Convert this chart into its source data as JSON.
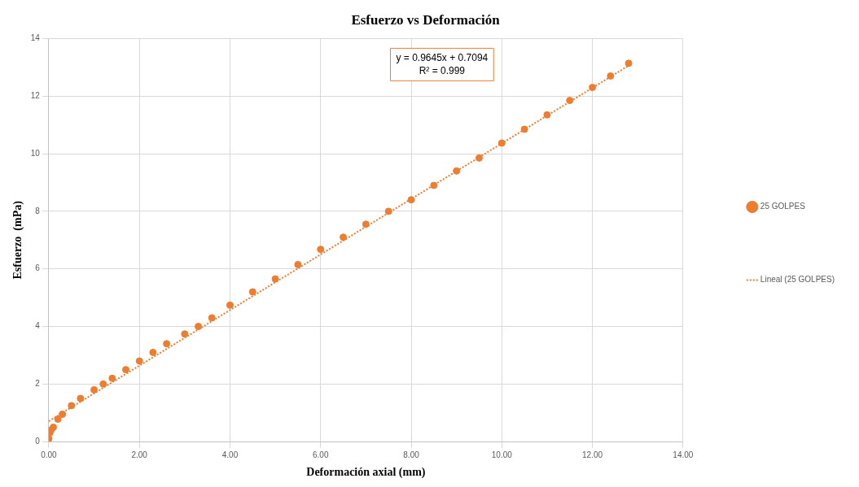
{
  "chart_data": {
    "type": "scatter",
    "title": "Esfuerzo vs Deformación",
    "xlabel": "Deformación axial (mm)",
    "ylabel": "Esfuerzo  (mPa)",
    "xlim": [
      0,
      14
    ],
    "xticks": [
      {
        "value": 0,
        "label": "0.00"
      },
      {
        "value": 2,
        "label": "2.00"
      },
      {
        "value": 4,
        "label": "4.00"
      },
      {
        "value": 6,
        "label": "6.00"
      },
      {
        "value": 8,
        "label": "8.00"
      },
      {
        "value": 10,
        "label": "10.00"
      },
      {
        "value": 12,
        "label": "12.00"
      },
      {
        "value": 14,
        "label": "14.00"
      }
    ],
    "ylim": [
      0,
      14
    ],
    "yticks": [
      0,
      2,
      4,
      6,
      8,
      10,
      12,
      14
    ],
    "grid": true,
    "legend": "right",
    "annotations": [
      "y = 0.9645x + 0.7094",
      "R² = 0.999"
    ],
    "series": [
      {
        "name": "25 GOLPES",
        "marker": "circle",
        "color": "#ed7d31",
        "x": [
          0,
          0.02,
          0.05,
          0.1,
          0.2,
          0.3,
          0.5,
          0.7,
          1.0,
          1.2,
          1.4,
          1.7,
          2.0,
          2.3,
          2.6,
          3.0,
          3.3,
          3.6,
          4.0,
          4.5,
          5.0,
          5.5,
          6.0,
          6.5,
          7.0,
          7.5,
          8.0,
          8.5,
          9.0,
          9.5,
          10.0,
          10.5,
          11.0,
          11.5,
          12.0,
          12.4,
          12.8
        ],
        "values": [
          0.1,
          0.3,
          0.4,
          0.5,
          0.78,
          0.95,
          1.25,
          1.5,
          1.8,
          2.0,
          2.2,
          2.5,
          2.8,
          3.1,
          3.4,
          3.74,
          4.0,
          4.3,
          4.74,
          5.2,
          5.65,
          6.15,
          6.68,
          7.1,
          7.55,
          8.0,
          8.4,
          8.9,
          9.4,
          9.85,
          10.37,
          10.85,
          11.35,
          11.85,
          12.3,
          12.7,
          13.14
        ]
      },
      {
        "name": "Lineal (25 GOLPES)",
        "type": "line",
        "color": "#ed7d31",
        "line_style": "dotted",
        "x": [
          0,
          12.8
        ],
        "values": [
          0.71,
          13.06
        ]
      }
    ]
  }
}
